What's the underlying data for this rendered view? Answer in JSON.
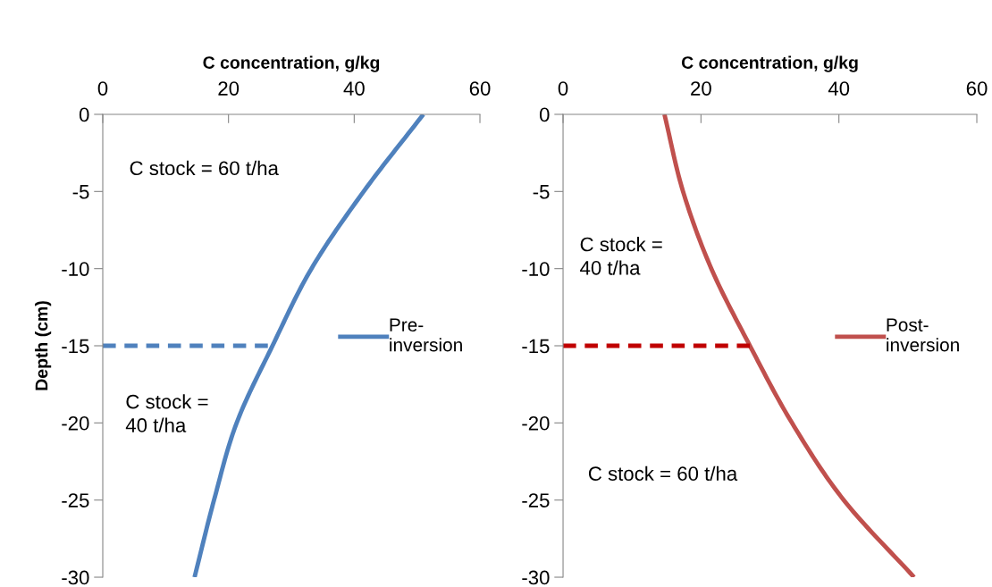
{
  "chart_data": [
    {
      "type": "line",
      "xlabel": "C concentration, g/kg",
      "ylabel": "Depth (cm)",
      "xlim": [
        0,
        60
      ],
      "xticks": [
        0,
        20,
        40,
        60
      ],
      "ylim": [
        -30,
        0
      ],
      "yticks": [
        0,
        -5,
        -10,
        -15,
        -20,
        -25,
        -30
      ],
      "grid": false,
      "legend": "right",
      "series": [
        {
          "name": "Pre-\ninversion",
          "color": "#4f81bd",
          "line_style": "solid",
          "x": [
            51.0,
            41.5,
            33.2,
            27.0,
            21.3,
            17.7,
            14.6
          ],
          "values": [
            0,
            -5,
            -10,
            -15,
            -20,
            -25,
            -30
          ]
        },
        {
          "color": "#4f81bd",
          "line_style": "dashed",
          "x": [
            0,
            27.0
          ],
          "values": [
            -15,
            -15
          ]
        }
      ],
      "annotations": [
        "C stock = 60 t/ha",
        "C stock =\n40 t/ha"
      ]
    },
    {
      "type": "line",
      "xlabel": "C concentration, g/kg",
      "xlim": [
        0,
        60
      ],
      "xticks": [
        0,
        20,
        40,
        60
      ],
      "ylim": [
        -30,
        0
      ],
      "yticks": [
        0,
        -5,
        -10,
        -15,
        -20,
        -25,
        -30
      ],
      "grid": false,
      "legend": "right",
      "series": [
        {
          "name": "Post-\ninversion",
          "color": "#c0504d",
          "line_style": "solid",
          "x": [
            14.7,
            17.4,
            21.5,
            27.1,
            33.2,
            40.7,
            50.9
          ],
          "values": [
            0,
            -5,
            -10,
            -15,
            -20,
            -25,
            -30
          ]
        },
        {
          "color": "#c00000",
          "line_style": "dashed",
          "x": [
            0,
            27.1
          ],
          "values": [
            -15,
            -15
          ]
        }
      ],
      "annotations": [
        "C stock =\n40 t/ha",
        "C stock = 60 t/ha"
      ]
    }
  ]
}
